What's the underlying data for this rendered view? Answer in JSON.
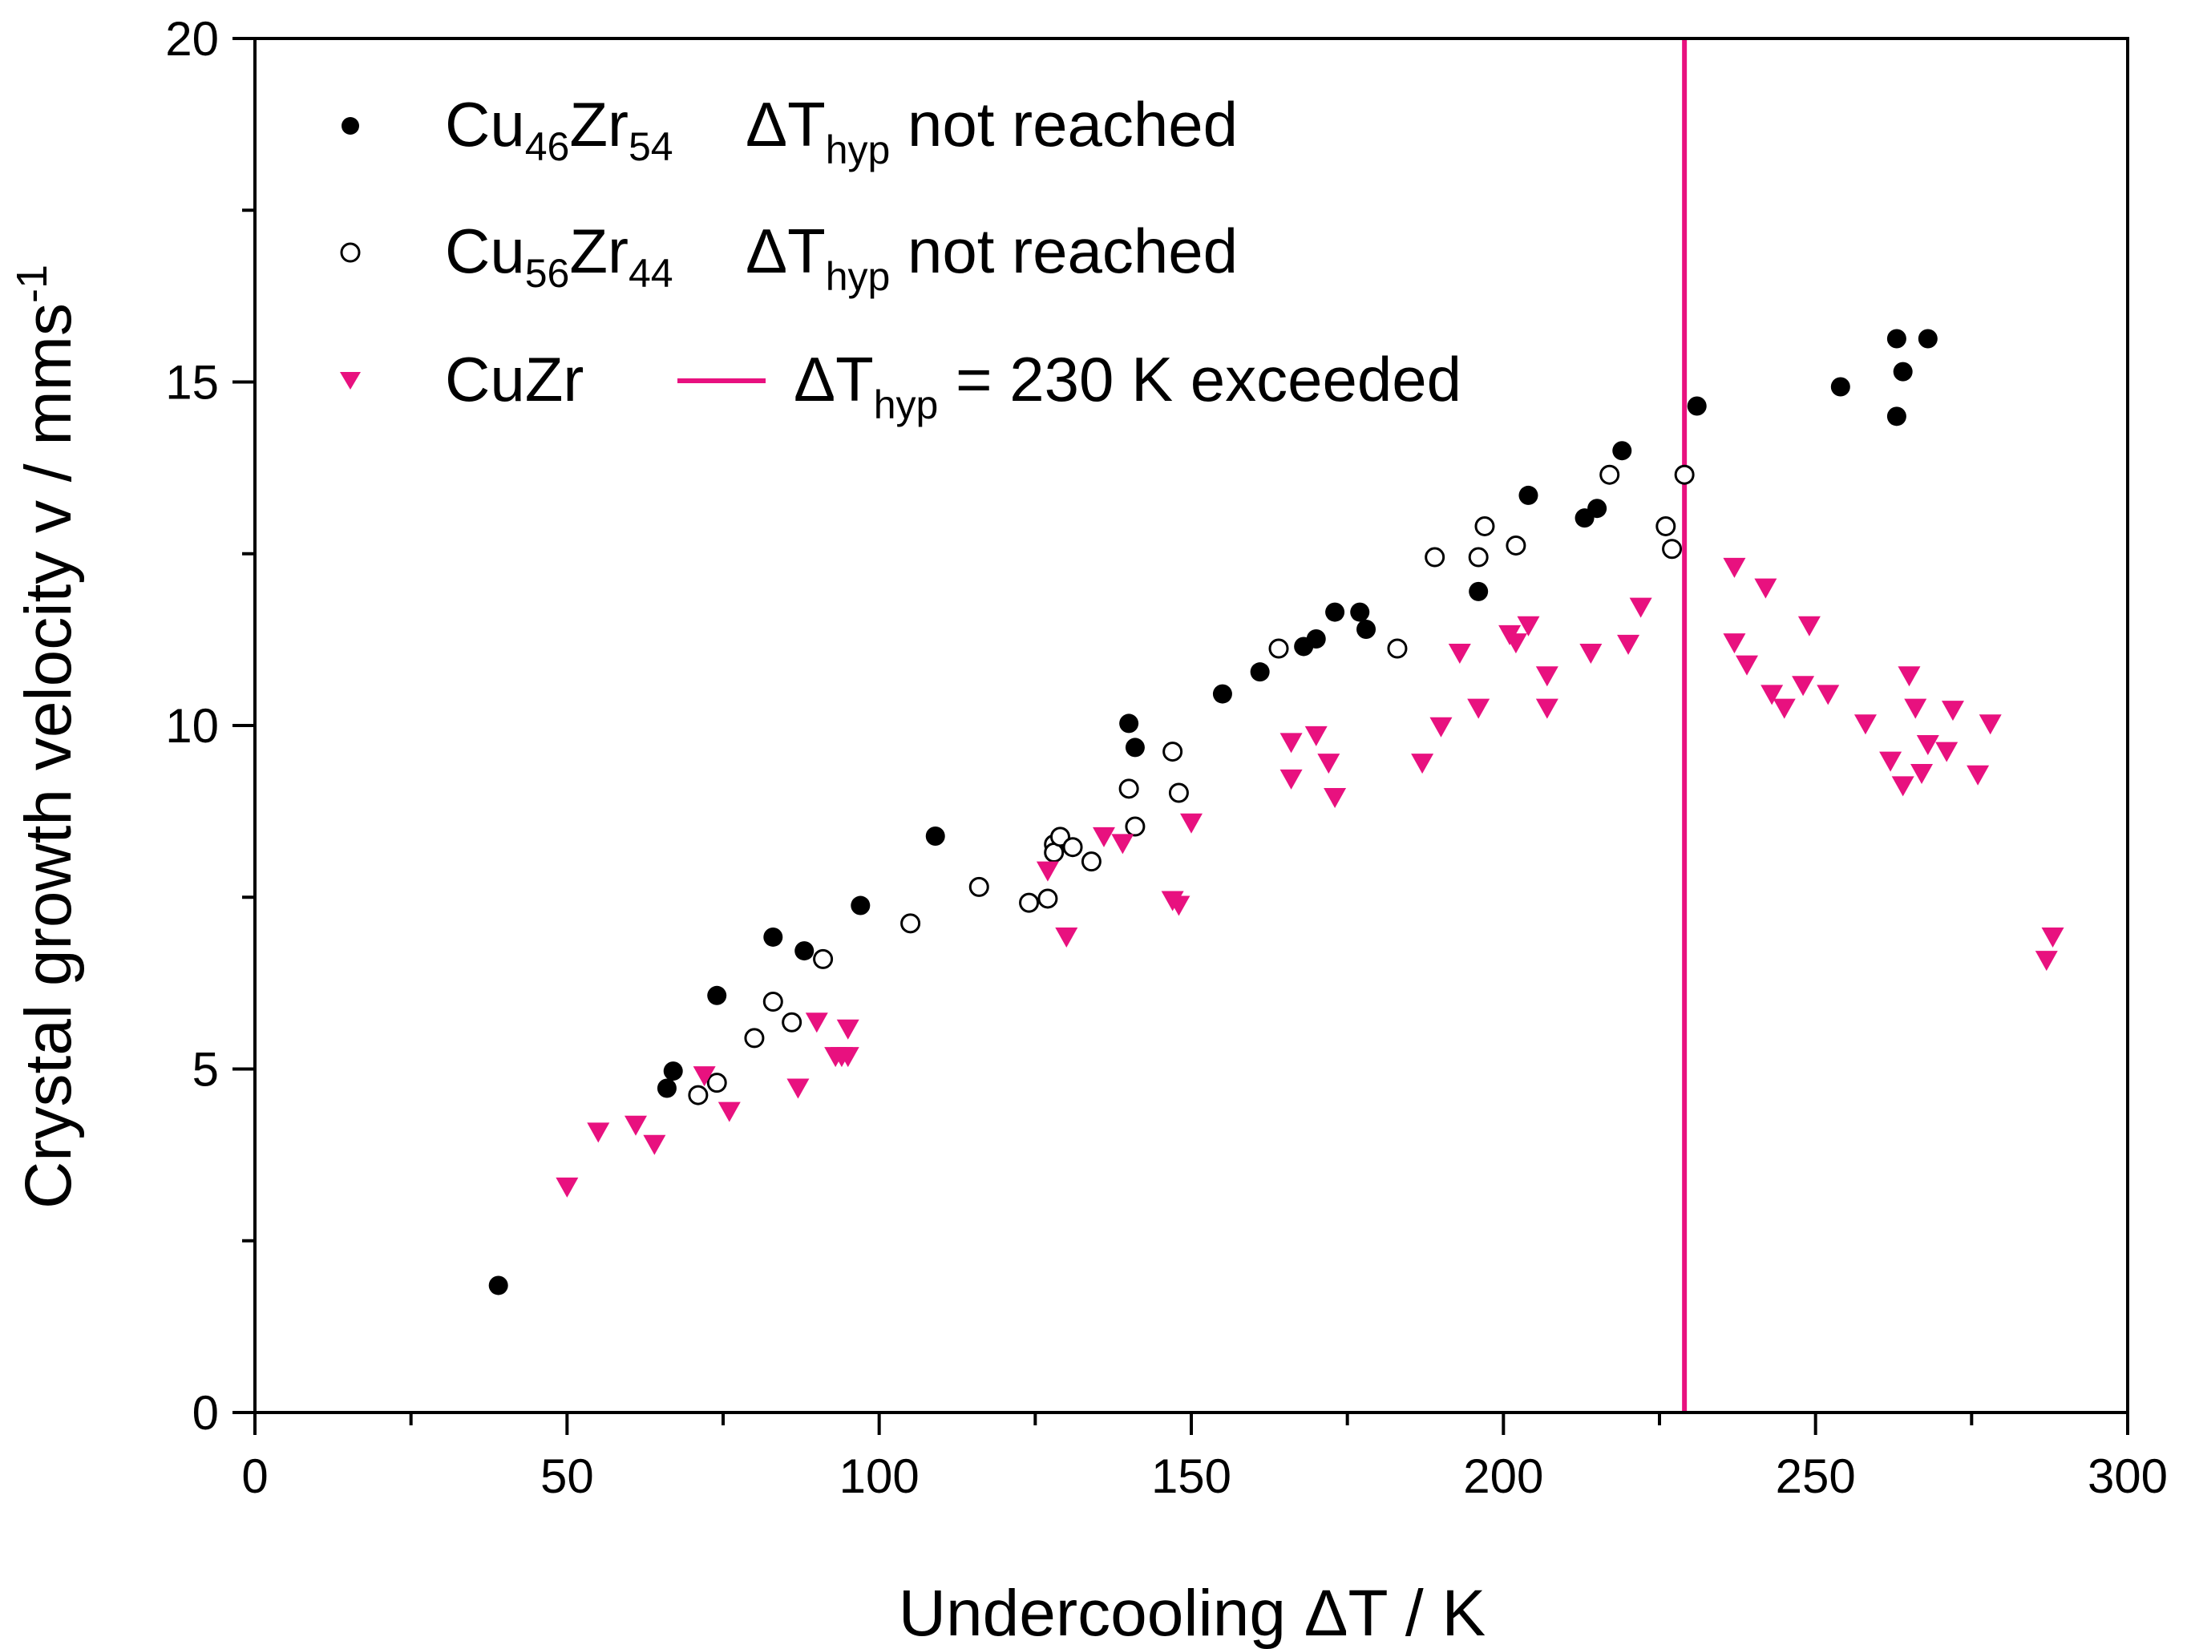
{
  "chart_data": {
    "type": "scatter",
    "xlabel": "Undercooling ΔT / K",
    "ylabel": "Crystal growth velocity v / mms",
    "ylabel_sup": "-1",
    "xlim": [
      0,
      300
    ],
    "ylim": [
      0,
      20
    ],
    "x_ticks": [
      0,
      50,
      100,
      150,
      200,
      250,
      300
    ],
    "y_ticks": [
      0,
      5,
      10,
      15,
      20
    ],
    "grid": false,
    "legend_position": "top-left",
    "colors": {
      "filled": "#000000",
      "open": "#000000",
      "triangle": "#e8117f",
      "vline": "#e8117f"
    },
    "series": [
      {
        "name": "Cu46Zr54",
        "marker": "filled-circle",
        "x": [
          39,
          66,
          67,
          74,
          83,
          88,
          97,
          109,
          140,
          141,
          155,
          161,
          168,
          170,
          173,
          177,
          178,
          196,
          204,
          213,
          215,
          219,
          231,
          254,
          263,
          263,
          264,
          268
        ],
        "y": [
          1.85,
          4.72,
          4.97,
          6.07,
          6.92,
          6.72,
          7.38,
          8.39,
          10.03,
          9.68,
          10.46,
          10.78,
          11.15,
          11.26,
          11.65,
          11.65,
          11.4,
          11.95,
          13.35,
          13.02,
          13.16,
          14.0,
          14.65,
          14.93,
          15.63,
          14.5,
          15.15,
          15.63
        ]
      },
      {
        "name": "Cu56Zr44",
        "marker": "open-circle",
        "x": [
          71,
          74,
          80,
          83,
          86,
          91,
          105,
          116,
          124,
          127,
          128,
          128,
          129,
          131,
          134,
          140,
          141,
          147,
          148,
          164,
          183,
          189,
          196,
          197,
          202,
          217,
          226,
          227,
          229
        ],
        "y": [
          4.62,
          4.8,
          5.45,
          5.98,
          5.68,
          6.6,
          7.12,
          7.65,
          7.42,
          7.48,
          8.27,
          8.15,
          8.38,
          8.23,
          8.02,
          9.08,
          8.53,
          9.62,
          9.02,
          11.12,
          11.12,
          12.45,
          12.45,
          12.9,
          12.62,
          13.65,
          12.9,
          12.57,
          13.65
        ]
      },
      {
        "name": "CuZr",
        "marker": "down-triangle",
        "x": [
          50,
          55,
          61,
          64,
          72,
          76,
          87,
          90,
          93,
          94,
          95,
          95,
          127,
          130,
          136,
          139,
          147,
          148,
          150,
          166,
          166,
          170,
          172,
          173,
          187,
          190,
          193,
          196,
          201,
          202,
          204,
          207,
          207,
          214,
          220,
          222,
          237,
          237,
          239,
          242,
          243,
          245,
          248,
          249,
          252,
          258,
          262,
          264,
          265,
          266,
          267,
          268,
          271,
          272,
          276,
          278,
          287,
          288
        ],
        "y": [
          3.28,
          4.08,
          4.18,
          3.9,
          4.9,
          4.38,
          4.72,
          5.68,
          5.18,
          5.18,
          5.58,
          5.18,
          7.88,
          6.92,
          8.38,
          8.28,
          7.45,
          7.38,
          8.58,
          9.75,
          9.22,
          9.85,
          9.45,
          8.95,
          9.45,
          9.98,
          11.05,
          10.25,
          11.32,
          11.2,
          11.45,
          10.72,
          10.25,
          11.05,
          11.18,
          11.72,
          12.3,
          11.2,
          10.88,
          12.0,
          10.45,
          10.25,
          10.58,
          11.45,
          10.45,
          10.02,
          9.48,
          9.12,
          10.72,
          10.25,
          9.3,
          9.72,
          9.62,
          10.22,
          9.28,
          10.02,
          6.58,
          6.92
        ]
      }
    ],
    "vline": {
      "x": 229,
      "label": "ΔT_hyp = 230 K exceeded"
    },
    "legend": [
      {
        "marker": "filled-circle",
        "base1": "Cu",
        "sub1": "46",
        "base2": "Zr",
        "sub2": "54",
        "desc_pre": "ΔT",
        "desc_sub": "hyp",
        "desc_post": " not reached"
      },
      {
        "marker": "open-circle",
        "base1": "Cu",
        "sub1": "56",
        "base2": "Zr",
        "sub2": "44",
        "desc_pre": "ΔT",
        "desc_sub": "hyp",
        "desc_post": " not reached"
      },
      {
        "marker": "down-triangle",
        "label": "CuZr"
      },
      {
        "marker": "vline",
        "desc_pre": "ΔT",
        "desc_sub": "hyp",
        "desc_post": " = 230 K exceeded"
      }
    ]
  }
}
